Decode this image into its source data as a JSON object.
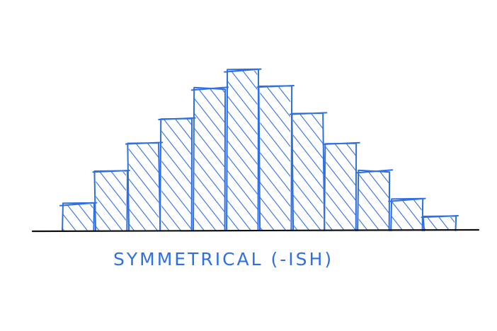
{
  "chart_data": {
    "type": "bar",
    "title": "",
    "xlabel": "",
    "ylabel": "",
    "categories": [
      "",
      "",
      "",
      "",
      "",
      "",
      "",
      "",
      "",
      "",
      "",
      ""
    ],
    "values": [
      38,
      84,
      124,
      159,
      201,
      227,
      204,
      166,
      124,
      84,
      44,
      20
    ],
    "ylim": [
      0,
      240
    ],
    "grid": false,
    "legend": "none",
    "colors": {
      "bar": "#2f6fe6",
      "axis": "#111111"
    }
  },
  "caption": "SYMMETRICAL (-ISH)"
}
